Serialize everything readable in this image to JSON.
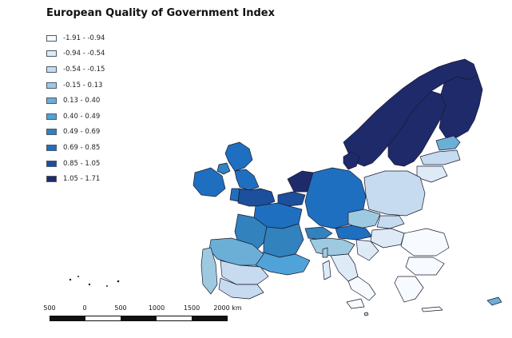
{
  "title": "European Quality of Government Index",
  "legend": {
    "items": [
      {
        "label": "-1.91 - -0.94",
        "color": "#f7fbff"
      },
      {
        "label": "-0.94 - -0.54",
        "color": "#deebf7"
      },
      {
        "label": "-0.54 - -0.15",
        "color": "#c6dbef"
      },
      {
        "label": "-0.15 - 0.13",
        "color": "#9ecae1"
      },
      {
        "label": "0.13 - 0.40",
        "color": "#6baed6"
      },
      {
        "label": "0.40 - 0.49",
        "color": "#4fa3d8"
      },
      {
        "label": "0.49 - 0.69",
        "color": "#3182bd"
      },
      {
        "label": "0.69 - 0.85",
        "color": "#1f6fc0"
      },
      {
        "label": "0.85 - 1.05",
        "color": "#1c4f9c"
      },
      {
        "label": "1.05 - 1.71",
        "color": "#1f2a6b"
      }
    ]
  },
  "scale_bar": {
    "labels": [
      "500",
      "0",
      "500",
      "1000",
      "1500",
      "2000 km"
    ]
  }
}
